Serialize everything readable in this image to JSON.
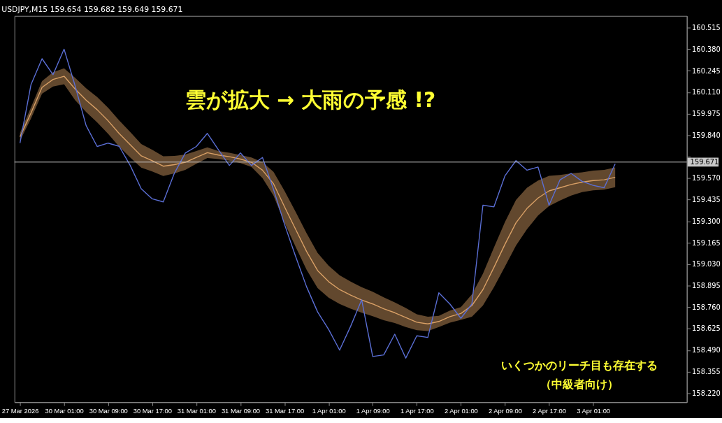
{
  "chart_data": {
    "type": "line",
    "title": "USDJPY,M15 159.654 159.682 159.649 159.671",
    "categories": [
      "27 Mar 2026",
      null,
      null,
      null,
      "30 Mar 01:00",
      null,
      null,
      null,
      "30 Mar 09:00",
      null,
      null,
      null,
      "30 Mar 17:00",
      null,
      null,
      null,
      "31 Mar 01:00",
      null,
      null,
      null,
      "31 Mar 09:00",
      null,
      null,
      null,
      "31 Mar 17:00",
      null,
      null,
      null,
      "1 Apr 01:00",
      null,
      null,
      null,
      "1 Apr 09:00",
      null,
      null,
      null,
      "1 Apr 17:00",
      null,
      null,
      null,
      "2 Apr 01:00",
      null,
      null,
      null,
      "2 Apr 09:00",
      null,
      null,
      null,
      "2 Apr 17:00",
      null,
      null,
      null,
      "3 Apr 01:00",
      null,
      null,
      null,
      null,
      null,
      null,
      null,
      null
    ],
    "ylim": [
      158.163,
      160.589
    ],
    "yticks": [
      {
        "value": 158.22,
        "label": "158.220"
      },
      {
        "value": 158.355,
        "label": "158.355"
      },
      {
        "value": 158.49,
        "label": "158.490"
      },
      {
        "value": 158.625,
        "label": "158.625"
      },
      {
        "value": 158.76,
        "label": "158.760"
      },
      {
        "value": 158.895,
        "label": "158.895"
      },
      {
        "value": 159.03,
        "label": "159.030"
      },
      {
        "value": 159.165,
        "label": "159.165"
      },
      {
        "value": 159.3,
        "label": "159.300"
      },
      {
        "value": 159.435,
        "label": "159.435"
      },
      {
        "value": 159.57,
        "label": "159.570"
      },
      {
        "value": 159.705,
        "label": null
      },
      {
        "value": 159.84,
        "label": "159.840"
      },
      {
        "value": 159.975,
        "label": "159.975"
      },
      {
        "value": 160.11,
        "label": "160.110"
      },
      {
        "value": 160.245,
        "label": "160.245"
      },
      {
        "value": 160.38,
        "label": "160.380"
      },
      {
        "value": 160.515,
        "label": "160.515"
      }
    ],
    "grid": false,
    "series": [
      {
        "color": "#d9a066",
        "values": [
          159.83,
          159.98,
          160.14,
          160.19,
          160.21,
          160.13,
          160.06,
          160.0,
          159.93,
          159.85,
          159.78,
          159.71,
          159.68,
          159.645,
          159.655,
          159.67,
          159.7,
          159.73,
          159.715,
          159.705,
          159.69,
          159.67,
          159.62,
          159.535,
          159.39,
          159.25,
          159.11,
          158.99,
          158.92,
          158.87,
          158.835,
          158.805,
          158.78,
          158.75,
          158.725,
          158.695,
          158.665,
          158.655,
          158.67,
          158.7,
          158.72,
          158.77,
          158.87,
          159.01,
          159.155,
          159.29,
          159.38,
          159.445,
          159.49,
          159.51,
          159.53,
          159.545,
          159.555,
          159.56,
          159.575,
          null,
          null,
          null,
          null,
          null,
          null
        ],
        "upper": [
          159.855,
          160.015,
          160.18,
          160.235,
          160.26,
          160.2,
          160.135,
          160.08,
          160.012,
          159.932,
          159.86,
          159.784,
          159.748,
          159.707,
          159.71,
          159.718,
          159.74,
          159.763,
          159.74,
          159.73,
          159.715,
          159.7,
          159.67,
          159.61,
          159.49,
          159.36,
          159.225,
          159.1,
          159.02,
          158.96,
          158.92,
          158.885,
          158.857,
          158.822,
          158.79,
          158.755,
          158.715,
          158.7,
          158.705,
          158.738,
          158.76,
          158.84,
          158.97,
          159.135,
          159.295,
          159.433,
          159.51,
          159.555,
          159.585,
          159.59,
          159.6,
          159.607,
          159.617,
          159.622,
          159.637,
          null,
          null,
          null,
          null,
          null,
          null
        ],
        "lower": [
          159.805,
          159.945,
          160.1,
          160.145,
          160.16,
          160.06,
          159.985,
          159.92,
          159.848,
          159.768,
          159.7,
          159.636,
          159.612,
          159.583,
          159.6,
          159.622,
          159.66,
          159.697,
          159.69,
          159.68,
          159.665,
          159.64,
          159.57,
          159.46,
          159.29,
          159.14,
          158.995,
          158.88,
          158.82,
          158.78,
          158.75,
          158.725,
          158.703,
          158.678,
          158.66,
          158.635,
          158.615,
          158.61,
          158.635,
          158.662,
          158.68,
          158.7,
          158.77,
          158.885,
          159.015,
          159.147,
          159.25,
          159.335,
          159.395,
          159.43,
          159.46,
          159.483,
          159.493,
          159.498,
          159.513,
          null,
          null,
          null,
          null,
          null,
          null
        ]
      },
      {
        "color": "#5b6fd6",
        "values": [
          159.79,
          160.158,
          160.32,
          160.22,
          160.38,
          160.15,
          159.9,
          159.769,
          159.79,
          159.77,
          159.65,
          159.503,
          159.44,
          159.421,
          159.6,
          159.728,
          159.769,
          159.851,
          159.749,
          159.65,
          159.728,
          159.65,
          159.7,
          159.5,
          159.28,
          159.08,
          158.888,
          158.73,
          158.62,
          158.49,
          158.64,
          158.806,
          158.45,
          158.46,
          158.59,
          158.44,
          158.58,
          158.57,
          158.85,
          158.78,
          158.69,
          158.78,
          159.4,
          159.39,
          159.585,
          159.68,
          159.62,
          159.64,
          159.4,
          159.56,
          159.6,
          159.55,
          159.525,
          159.51,
          159.66,
          null,
          null,
          null,
          null,
          null,
          null
        ]
      }
    ],
    "ref_lines": [
      {
        "axis": "y",
        "value": 159.671,
        "label": "159.671",
        "color": "#c8c8c8"
      }
    ],
    "annotations": [
      "雲が拡大 → 大雨の予感 !?",
      "いくつかのリーチ目も存在する",
      "（中級者向け）"
    ]
  }
}
